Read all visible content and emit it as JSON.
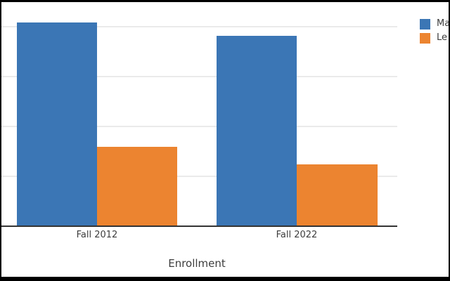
{
  "chart_data": {
    "type": "bar",
    "categories": [
      "Fall 2012",
      "Fall 2022"
    ],
    "series": [
      {
        "name": "Ma",
        "color": "#3b76b5",
        "values": [
          4.08,
          3.82
        ]
      },
      {
        "name": "Le",
        "color": "#ec8430",
        "values": [
          1.59,
          1.24
        ]
      }
    ],
    "title": "",
    "xlabel": "Enrollment",
    "ylabel": "",
    "ylim": [
      0,
      4.5
    ],
    "values_unit": "gridline-intervals (y tick labels cropped out of frame)",
    "grid": true,
    "legend_position": "upper right, labels truncated at image edge"
  },
  "colors": {
    "background": "#ffffff",
    "frame": "#000000",
    "gridline": "#eaeaea",
    "axis_line": "#333333",
    "text": "#3d3d3d"
  }
}
